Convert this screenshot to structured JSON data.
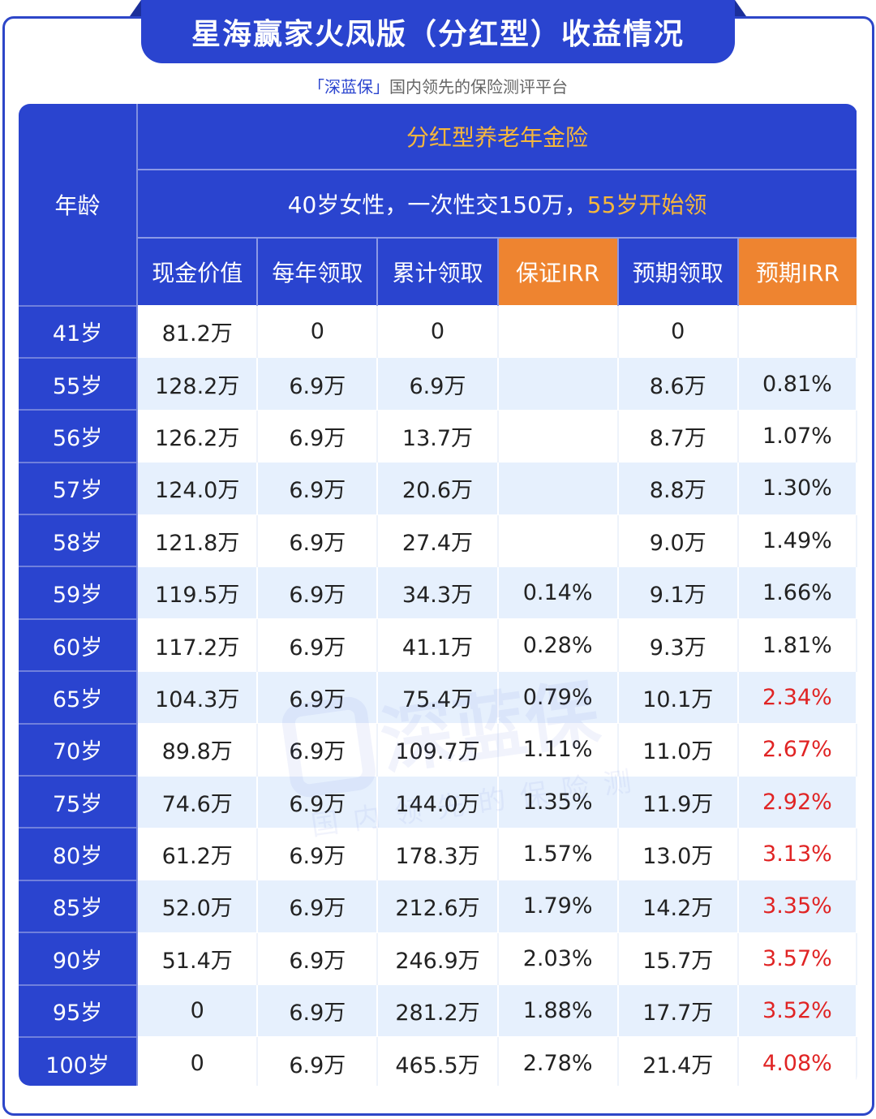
{
  "title": "星海赢家火凤版（分红型）收益情况",
  "subtitle": {
    "brand": "「深蓝保」",
    "text": "国内领先的保险测评平台"
  },
  "header": {
    "age_label": "年龄",
    "plan_type": "分红型养老年金险",
    "scenario_prefix": "40岁女性，一次性交150万，",
    "scenario_highlight": "55岁开始领",
    "columns": [
      "现金价值",
      "每年领取",
      "累计领取",
      "保证IRR",
      "预期领取",
      "预期IRR"
    ]
  },
  "rows": [
    {
      "age": "41岁",
      "cash": "81.2万",
      "annual": "0",
      "cumulative": "0",
      "g_irr": "",
      "expected": "0",
      "e_irr": ""
    },
    {
      "age": "55岁",
      "cash": "128.2万",
      "annual": "6.9万",
      "cumulative": "6.9万",
      "g_irr": "",
      "expected": "8.6万",
      "e_irr": "0.81%"
    },
    {
      "age": "56岁",
      "cash": "126.2万",
      "annual": "6.9万",
      "cumulative": "13.7万",
      "g_irr": "",
      "expected": "8.7万",
      "e_irr": "1.07%"
    },
    {
      "age": "57岁",
      "cash": "124.0万",
      "annual": "6.9万",
      "cumulative": "20.6万",
      "g_irr": "",
      "expected": "8.8万",
      "e_irr": "1.30%"
    },
    {
      "age": "58岁",
      "cash": "121.8万",
      "annual": "6.9万",
      "cumulative": "27.4万",
      "g_irr": "",
      "expected": "9.0万",
      "e_irr": "1.49%"
    },
    {
      "age": "59岁",
      "cash": "119.5万",
      "annual": "6.9万",
      "cumulative": "34.3万",
      "g_irr": "0.14%",
      "expected": "9.1万",
      "e_irr": "1.66%"
    },
    {
      "age": "60岁",
      "cash": "117.2万",
      "annual": "6.9万",
      "cumulative": "41.1万",
      "g_irr": "0.28%",
      "expected": "9.3万",
      "e_irr": "1.81%"
    },
    {
      "age": "65岁",
      "cash": "104.3万",
      "annual": "6.9万",
      "cumulative": "75.4万",
      "g_irr": "0.79%",
      "expected": "10.1万",
      "e_irr": "2.34%"
    },
    {
      "age": "70岁",
      "cash": "89.8万",
      "annual": "6.9万",
      "cumulative": "109.7万",
      "g_irr": "1.11%",
      "expected": "11.0万",
      "e_irr": "2.67%"
    },
    {
      "age": "75岁",
      "cash": "74.6万",
      "annual": "6.9万",
      "cumulative": "144.0万",
      "g_irr": "1.35%",
      "expected": "11.9万",
      "e_irr": "2.92%"
    },
    {
      "age": "80岁",
      "cash": "61.2万",
      "annual": "6.9万",
      "cumulative": "178.3万",
      "g_irr": "1.57%",
      "expected": "13.0万",
      "e_irr": "3.13%"
    },
    {
      "age": "85岁",
      "cash": "52.0万",
      "annual": "6.9万",
      "cumulative": "212.6万",
      "g_irr": "1.79%",
      "expected": "14.2万",
      "e_irr": "3.35%"
    },
    {
      "age": "90岁",
      "cash": "51.4万",
      "annual": "6.9万",
      "cumulative": "246.9万",
      "g_irr": "2.03%",
      "expected": "15.7万",
      "e_irr": "3.57%"
    },
    {
      "age": "95岁",
      "cash": "0",
      "annual": "6.9万",
      "cumulative": "281.2万",
      "g_irr": "1.88%",
      "expected": "17.7万",
      "e_irr": "3.52%"
    },
    {
      "age": "100岁",
      "cash": "0",
      "annual": "6.9万",
      "cumulative": "465.5万",
      "g_irr": "2.78%",
      "expected": "21.4万",
      "e_irr": "4.08%"
    }
  ],
  "highlight_rows_from": 7,
  "colors": {
    "primary_blue": "#2a44cf",
    "header_orange": "#ee8430",
    "highlight_text": "#f6b73c",
    "alt_row_bg": "#e6f0fd",
    "irr_emphasis": "#e02424"
  },
  "watermark": {
    "brand": "深蓝保",
    "tagline": "国内领先的保险测评平台"
  }
}
